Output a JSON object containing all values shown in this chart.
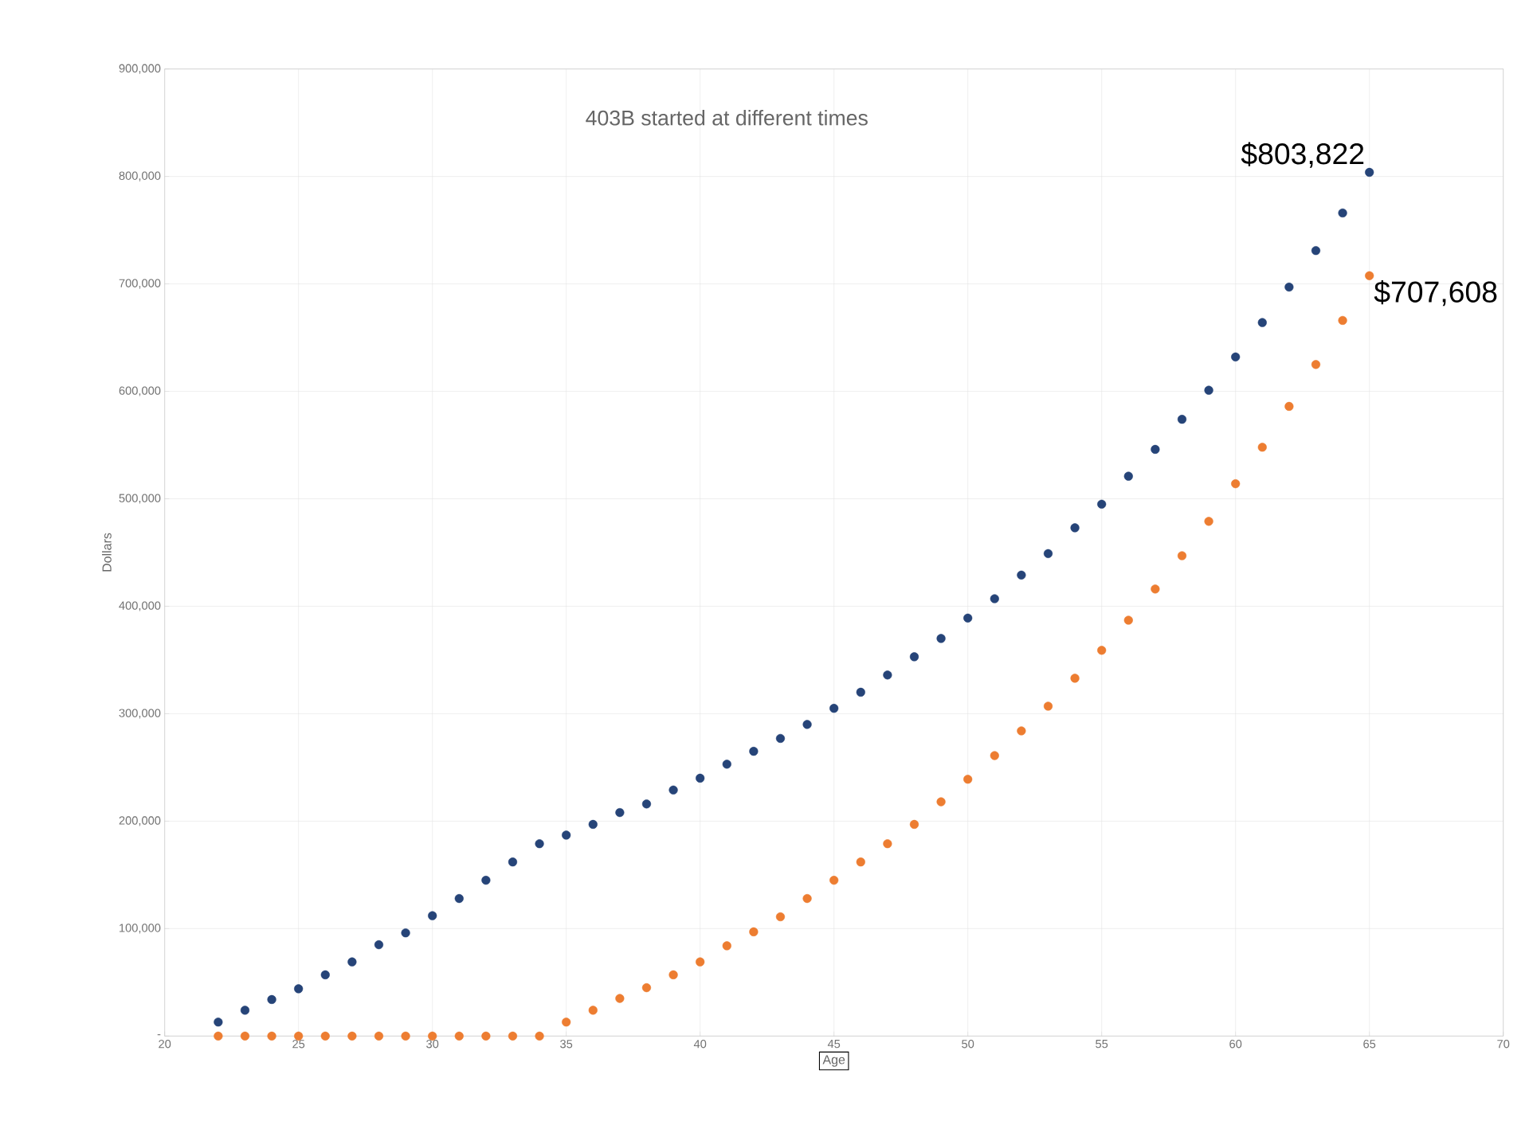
{
  "chart_data": {
    "type": "scatter",
    "title": "403B started at different times",
    "xlabel": "Age",
    "ylabel": "Dollars",
    "x": [
      22,
      23,
      24,
      25,
      26,
      27,
      28,
      29,
      30,
      31,
      32,
      33,
      34,
      35,
      36,
      37,
      38,
      39,
      40,
      41,
      42,
      43,
      44,
      45,
      46,
      47,
      48,
      49,
      50,
      51,
      52,
      53,
      54,
      55,
      56,
      57,
      58,
      59,
      60,
      61,
      62,
      63,
      64,
      65
    ],
    "series": [
      {
        "color": "#264478",
        "values": [
          13000,
          24000,
          34000,
          44000,
          57000,
          69000,
          85000,
          96000,
          112000,
          128000,
          145000,
          162000,
          179000,
          187000,
          197000,
          208000,
          216000,
          229000,
          240000,
          253000,
          265000,
          277000,
          290000,
          305000,
          320000,
          336000,
          353000,
          370000,
          389000,
          407000,
          429000,
          449000,
          473000,
          495000,
          521000,
          546000,
          574000,
          601000,
          632000,
          664000,
          697000,
          731000,
          766000,
          803822
        ]
      },
      {
        "color": "#ed7d31",
        "values": [
          0,
          0,
          0,
          0,
          0,
          0,
          0,
          0,
          0,
          0,
          0,
          0,
          0,
          13000,
          24000,
          35000,
          45000,
          57000,
          69000,
          84000,
          97000,
          111000,
          128000,
          145000,
          162000,
          179000,
          197000,
          218000,
          239000,
          261000,
          284000,
          307000,
          333000,
          359000,
          387000,
          416000,
          447000,
          479000,
          514000,
          548000,
          586000,
          625000,
          666000,
          707608
        ]
      }
    ],
    "xlim": [
      20,
      70
    ],
    "xticks": [
      20,
      25,
      30,
      35,
      40,
      45,
      50,
      55,
      60,
      65,
      70
    ],
    "ylim": [
      0,
      900000
    ],
    "yticks": [
      {
        "value": 0,
        "label": "-"
      },
      {
        "value": 100000,
        "label": "100,000"
      },
      {
        "value": 200000,
        "label": "200,000"
      },
      {
        "value": 300000,
        "label": "300,000"
      },
      {
        "value": 400000,
        "label": "400,000"
      },
      {
        "value": 500000,
        "label": "500,000"
      },
      {
        "value": 600000,
        "label": "600,000"
      },
      {
        "value": 700000,
        "label": "700,000"
      },
      {
        "value": 800000,
        "label": "800,000"
      },
      {
        "value": 900000,
        "label": "900,000"
      }
    ],
    "annotations": [
      {
        "text": "$803,822",
        "x": 65,
        "y": 803822
      },
      {
        "text": "$707,608",
        "x": 65,
        "y": 707608
      }
    ],
    "grid": true,
    "marker": "circle"
  }
}
